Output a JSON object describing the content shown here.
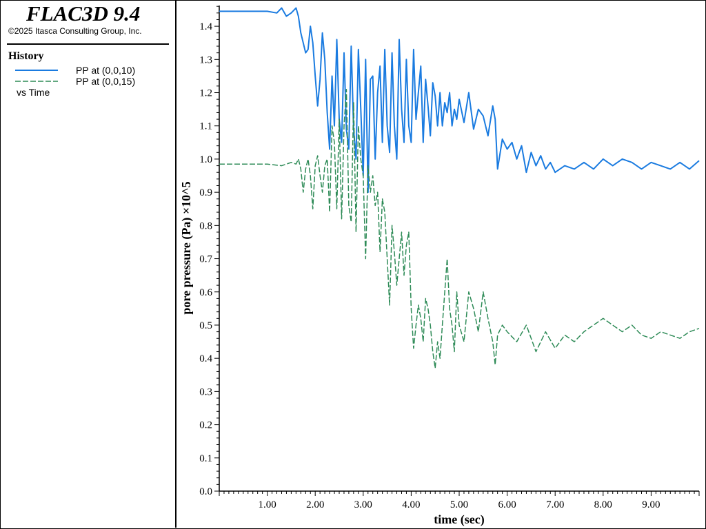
{
  "app": {
    "title": "FLAC3D 9.4",
    "copyright": "©2025 Itasca Consulting Group, Inc."
  },
  "legend": {
    "heading": "History",
    "entries": [
      {
        "label": "PP at (0,0,10)",
        "color": "#1a7be0",
        "style": "solid"
      },
      {
        "label": "PP at (0,0,15)",
        "color": "#2e8b57",
        "style": "dashed"
      }
    ],
    "footer": "vs Time"
  },
  "chart_data": {
    "type": "line",
    "xlabel": "time (sec)",
    "ylabel": "pore pressure (Pa) ×10^5",
    "xlim": [
      0,
      10
    ],
    "ylim": [
      0,
      1.45
    ],
    "x_ticks": [
      "1.00",
      "2.00",
      "3.00",
      "4.00",
      "5.00",
      "6.00",
      "7.00",
      "8.00",
      "9.00"
    ],
    "y_ticks": [
      "0.0",
      "0.1",
      "0.2",
      "0.3",
      "0.4",
      "0.5",
      "0.6",
      "0.7",
      "0.8",
      "0.9",
      "1.0",
      "1.1",
      "1.2",
      "1.3",
      "1.4"
    ],
    "grid": false,
    "series": [
      {
        "name": "PP at (0,0,10)",
        "color": "#1a7be0",
        "style": "solid",
        "x": [
          0.0,
          0.5,
          1.0,
          1.2,
          1.3,
          1.4,
          1.5,
          1.6,
          1.65,
          1.7,
          1.8,
          1.85,
          1.9,
          1.95,
          2.0,
          2.05,
          2.1,
          2.15,
          2.2,
          2.25,
          2.3,
          2.35,
          2.4,
          2.45,
          2.5,
          2.55,
          2.6,
          2.65,
          2.7,
          2.75,
          2.8,
          2.85,
          2.9,
          2.95,
          3.0,
          3.05,
          3.1,
          3.15,
          3.2,
          3.25,
          3.3,
          3.35,
          3.4,
          3.45,
          3.5,
          3.55,
          3.6,
          3.65,
          3.7,
          3.75,
          3.8,
          3.85,
          3.9,
          3.95,
          4.0,
          4.05,
          4.1,
          4.15,
          4.2,
          4.25,
          4.3,
          4.35,
          4.4,
          4.45,
          4.5,
          4.55,
          4.6,
          4.65,
          4.7,
          4.75,
          4.8,
          4.85,
          4.9,
          4.95,
          5.0,
          5.1,
          5.2,
          5.3,
          5.4,
          5.5,
          5.6,
          5.7,
          5.75,
          5.8,
          5.9,
          6.0,
          6.1,
          6.2,
          6.3,
          6.4,
          6.5,
          6.6,
          6.7,
          6.8,
          6.9,
          7.0,
          7.2,
          7.4,
          7.6,
          7.8,
          8.0,
          8.2,
          8.4,
          8.6,
          8.8,
          9.0,
          9.2,
          9.4,
          9.6,
          9.8,
          10.0
        ],
        "y": [
          1.445,
          1.445,
          1.445,
          1.44,
          1.455,
          1.43,
          1.44,
          1.455,
          1.43,
          1.38,
          1.32,
          1.33,
          1.4,
          1.35,
          1.25,
          1.16,
          1.24,
          1.38,
          1.3,
          1.14,
          1.03,
          1.25,
          1.1,
          1.36,
          1.12,
          1.05,
          1.32,
          1.09,
          1.03,
          1.34,
          1.09,
          1.0,
          1.33,
          1.15,
          0.95,
          1.3,
          0.9,
          1.24,
          1.25,
          1.0,
          1.2,
          1.28,
          1.05,
          1.33,
          1.1,
          1.02,
          1.32,
          1.1,
          1.0,
          1.36,
          1.15,
          1.05,
          1.3,
          1.1,
          1.05,
          1.33,
          1.12,
          1.2,
          1.28,
          1.05,
          1.24,
          1.16,
          1.07,
          1.23,
          1.19,
          1.1,
          1.2,
          1.1,
          1.17,
          1.14,
          1.2,
          1.1,
          1.15,
          1.12,
          1.18,
          1.11,
          1.2,
          1.09,
          1.15,
          1.13,
          1.07,
          1.16,
          1.12,
          0.97,
          1.06,
          1.03,
          1.05,
          1.0,
          1.04,
          0.96,
          1.02,
          0.98,
          1.01,
          0.97,
          0.99,
          0.96,
          0.98,
          0.97,
          0.99,
          0.97,
          1.0,
          0.98,
          1.0,
          0.99,
          0.97,
          0.99,
          0.98,
          0.97,
          0.99,
          0.97,
          0.995
        ]
      },
      {
        "name": "PP at (0,0,15)",
        "color": "#2e8b57",
        "style": "dashed",
        "x": [
          0.0,
          0.5,
          1.0,
          1.3,
          1.5,
          1.6,
          1.65,
          1.7,
          1.75,
          1.8,
          1.85,
          1.9,
          1.95,
          2.0,
          2.05,
          2.1,
          2.15,
          2.2,
          2.25,
          2.3,
          2.35,
          2.4,
          2.45,
          2.5,
          2.55,
          2.6,
          2.65,
          2.7,
          2.75,
          2.8,
          2.85,
          2.9,
          2.95,
          3.0,
          3.05,
          3.1,
          3.15,
          3.2,
          3.25,
          3.3,
          3.35,
          3.4,
          3.45,
          3.5,
          3.55,
          3.6,
          3.65,
          3.7,
          3.75,
          3.8,
          3.85,
          3.9,
          3.95,
          4.0,
          4.05,
          4.1,
          4.15,
          4.2,
          4.25,
          4.3,
          4.35,
          4.4,
          4.45,
          4.5,
          4.55,
          4.6,
          4.65,
          4.7,
          4.75,
          4.8,
          4.85,
          4.9,
          4.95,
          5.0,
          5.1,
          5.2,
          5.3,
          5.4,
          5.5,
          5.6,
          5.7,
          5.75,
          5.8,
          5.9,
          6.0,
          6.2,
          6.4,
          6.6,
          6.8,
          7.0,
          7.2,
          7.4,
          7.6,
          7.8,
          8.0,
          8.2,
          8.4,
          8.6,
          8.8,
          9.0,
          9.2,
          9.4,
          9.6,
          9.8,
          10.0
        ],
        "y": [
          0.985,
          0.985,
          0.985,
          0.98,
          0.99,
          0.985,
          1.0,
          0.97,
          0.9,
          0.97,
          1.0,
          0.95,
          0.85,
          0.98,
          1.01,
          0.95,
          0.9,
          0.98,
          1.0,
          0.84,
          1.1,
          1.05,
          0.85,
          1.12,
          0.82,
          1.1,
          1.21,
          0.86,
          0.81,
          1.17,
          0.78,
          1.1,
          1.0,
          0.95,
          0.7,
          0.98,
          0.9,
          0.95,
          0.86,
          0.9,
          0.72,
          0.88,
          0.84,
          0.7,
          0.56,
          0.8,
          0.72,
          0.62,
          0.7,
          0.78,
          0.65,
          0.74,
          0.78,
          0.55,
          0.43,
          0.5,
          0.56,
          0.52,
          0.45,
          0.58,
          0.55,
          0.5,
          0.42,
          0.37,
          0.45,
          0.4,
          0.5,
          0.6,
          0.7,
          0.55,
          0.5,
          0.42,
          0.6,
          0.5,
          0.45,
          0.6,
          0.55,
          0.48,
          0.6,
          0.52,
          0.45,
          0.38,
          0.47,
          0.5,
          0.48,
          0.45,
          0.5,
          0.42,
          0.48,
          0.43,
          0.47,
          0.45,
          0.48,
          0.5,
          0.52,
          0.5,
          0.48,
          0.5,
          0.47,
          0.46,
          0.48,
          0.47,
          0.46,
          0.48,
          0.49
        ]
      }
    ]
  }
}
